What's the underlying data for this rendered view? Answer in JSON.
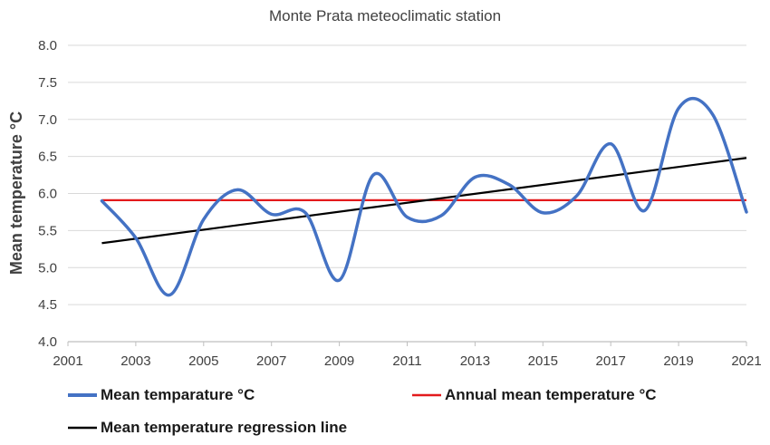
{
  "chart_data": {
    "type": "line",
    "title": "Monte Prata  meteoclimatic station",
    "xlabel": "",
    "ylabel": "Mean temperature  °C",
    "xlim": [
      2001,
      2021
    ],
    "ylim": [
      4.0,
      8.0
    ],
    "x_ticks": [
      "2001",
      "2003",
      "2005",
      "2007",
      "2009",
      "2011",
      "2013",
      "2015",
      "2017",
      "2019",
      "2021"
    ],
    "y_ticks": [
      "4.0",
      "4.5",
      "5.0",
      "5.5",
      "6.0",
      "6.5",
      "7.0",
      "7.5",
      "8.0"
    ],
    "grid": "horizontal",
    "legend_position": "bottom",
    "series": [
      {
        "name": "Mean temparature °C",
        "color": "#4472c4",
        "smooth": true,
        "x": [
          2002,
          2003,
          2004,
          2005,
          2006,
          2007,
          2008,
          2009,
          2010,
          2011,
          2012,
          2013,
          2014,
          2015,
          2016,
          2017,
          2018,
          2019,
          2020,
          2021
        ],
        "y": [
          5.9,
          5.4,
          4.63,
          5.65,
          6.05,
          5.72,
          5.74,
          4.83,
          6.25,
          5.68,
          5.7,
          6.22,
          6.12,
          5.74,
          5.97,
          6.67,
          5.77,
          7.15,
          7.07,
          5.75
        ]
      },
      {
        "name": "Annual mean temperature °C",
        "color": "#e31a1c",
        "x": [
          2002,
          2021
        ],
        "y": [
          5.91,
          5.91
        ]
      },
      {
        "name": "Mean temperature regression line",
        "color": "#000000",
        "x": [
          2002,
          2021
        ],
        "y": [
          5.33,
          6.48
        ]
      }
    ]
  }
}
